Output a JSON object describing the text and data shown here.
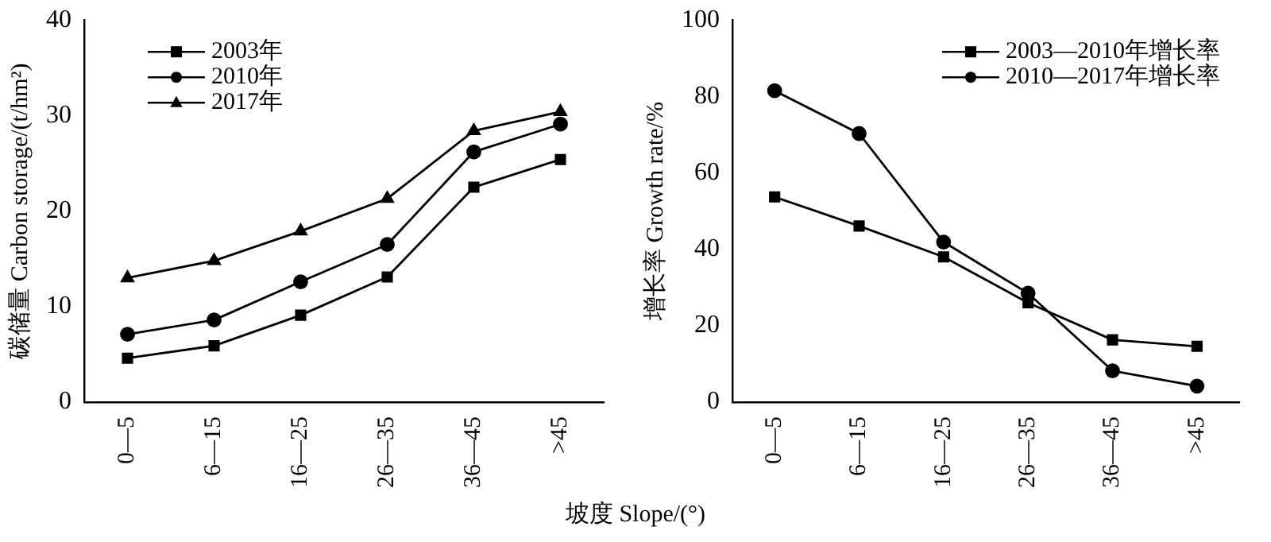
{
  "chart_data": [
    {
      "type": "line",
      "xlabel": "坡度 Slope/(°)",
      "ylabel": "碳储量 Carbon storage/(t/hm²)",
      "categories": [
        "0—5",
        "6—15",
        "16—25",
        "26—35",
        "36—45",
        ">45"
      ],
      "ylim": [
        0,
        40
      ],
      "yticks": [
        0,
        10,
        20,
        30,
        40
      ],
      "grid": false,
      "legend": "top left",
      "line_style": "solid",
      "series": [
        {
          "name": "2003年",
          "color": "#000000",
          "marker": "square",
          "values": [
            4.6,
            5.9,
            9.1,
            13.1,
            22.5,
            25.4
          ]
        },
        {
          "name": "2010年",
          "color": "#000000",
          "marker": "circle",
          "values": [
            7.1,
            8.6,
            12.6,
            16.5,
            26.2,
            29.1
          ]
        },
        {
          "name": "2017年",
          "color": "#000000",
          "marker": "triangle",
          "values": [
            13.0,
            14.8,
            17.9,
            21.3,
            28.4,
            30.4
          ]
        }
      ]
    },
    {
      "type": "line",
      "ylabel": "增长率 Growth rate/%",
      "categories": [
        "0—5",
        "6—15",
        "16—25",
        "26—35",
        "36—45",
        ">45"
      ],
      "ylim": [
        0,
        100
      ],
      "yticks": [
        0,
        20,
        40,
        60,
        80,
        100
      ],
      "grid": false,
      "legend": "top right",
      "line_style": "solid",
      "series": [
        {
          "name": "2003—2010年增长率",
          "color": "#000000",
          "marker": "square",
          "values": [
            53.7,
            46.1,
            38.0,
            26.0,
            16.3,
            14.6
          ]
        },
        {
          "name": "2010—2017年增长率",
          "color": "#000000",
          "marker": "circle",
          "values": [
            81.5,
            70.3,
            41.9,
            28.5,
            8.2,
            4.2
          ]
        }
      ]
    }
  ]
}
